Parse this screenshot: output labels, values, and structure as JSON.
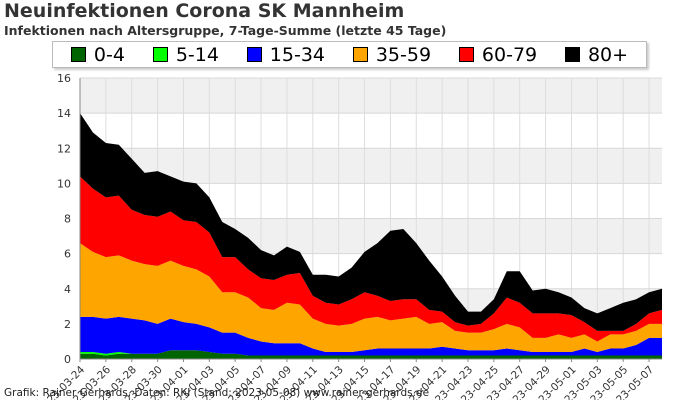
{
  "title": "Neuinfektionen Corona SK Mannheim",
  "subtitle": "Infektionen nach Altersgruppe, 7-Tage-Summe (letzte 45 Tage)",
  "footer": "Grafik: Rainer Gerhards, Daten: RKI (Stand: 2023-05-08) www.rainer-gerhards.de",
  "chart_data": {
    "type": "area",
    "stacked": true,
    "title": "Neuinfektionen Corona SK Mannheim",
    "subtitle": "Infektionen nach Altersgruppe, 7-Tage-Summe (letzte 45 Tage)",
    "xlabel": "",
    "ylabel": "",
    "ylim": [
      0,
      16
    ],
    "yticks": [
      0,
      2,
      4,
      6,
      8,
      10,
      12,
      14,
      16
    ],
    "grid": true,
    "legend_position": "top",
    "x": [
      "2023-03-24",
      "2023-03-25",
      "2023-03-26",
      "2023-03-27",
      "2023-03-28",
      "2023-03-29",
      "2023-03-30",
      "2023-03-31",
      "2023-04-01",
      "2023-04-02",
      "2023-04-03",
      "2023-04-04",
      "2023-04-05",
      "2023-04-06",
      "2023-04-07",
      "2023-04-08",
      "2023-04-09",
      "2023-04-10",
      "2023-04-11",
      "2023-04-12",
      "2023-04-13",
      "2023-04-14",
      "2023-04-15",
      "2023-04-16",
      "2023-04-17",
      "2023-04-18",
      "2023-04-19",
      "2023-04-20",
      "2023-04-21",
      "2023-04-22",
      "2023-04-23",
      "2023-04-24",
      "2023-04-25",
      "2023-04-26",
      "2023-04-27",
      "2023-04-28",
      "2023-04-29",
      "2023-04-30",
      "2023-05-01",
      "2023-05-02",
      "2023-05-03",
      "2023-05-04",
      "2023-05-05",
      "2023-05-06",
      "2023-05-07",
      "2023-05-08"
    ],
    "xtick_labels": [
      "2023-03-24",
      "2023-03-26",
      "2023-03-28",
      "2023-03-30",
      "2023-04-01",
      "2023-04-03",
      "2023-04-05",
      "2023-04-07",
      "2023-04-09",
      "2023-04-11",
      "2023-04-13",
      "2023-04-15",
      "2023-04-17",
      "2023-04-19",
      "2023-04-21",
      "2023-04-23",
      "2023-04-25",
      "2023-04-27",
      "2023-04-29",
      "2023-05-01",
      "2023-05-03",
      "2023-05-05",
      "2023-05-07"
    ],
    "series": [
      {
        "name": "0-4",
        "color": "#006400",
        "values": [
          0.3,
          0.3,
          0.2,
          0.3,
          0.3,
          0.3,
          0.3,
          0.5,
          0.5,
          0.5,
          0.4,
          0.3,
          0.3,
          0.2,
          0.2,
          0.2,
          0.2,
          0.2,
          0.2,
          0.2,
          0.2,
          0.2,
          0.2,
          0.2,
          0.2,
          0.2,
          0.2,
          0.2,
          0.2,
          0.2,
          0.2,
          0.2,
          0.2,
          0.2,
          0.2,
          0.2,
          0.2,
          0.2,
          0.2,
          0.2,
          0.2,
          0.2,
          0.2,
          0.2,
          0.2,
          0.2
        ]
      },
      {
        "name": "5-14",
        "color": "#00ff00",
        "values": [
          0.1,
          0.1,
          0.1,
          0.1,
          0.0,
          0.0,
          0.0,
          0.0,
          0.0,
          0.0,
          0.0,
          0.0,
          0.0,
          0.0,
          0.0,
          0.0,
          0.0,
          0.0,
          0.0,
          0.0,
          0.0,
          0.0,
          0.0,
          0.0,
          0.0,
          0.0,
          0.0,
          0.0,
          0.0,
          0.0,
          0.0,
          0.0,
          0.0,
          0.0,
          0.0,
          0.0,
          0.0,
          0.0,
          0.0,
          0.0,
          0.0,
          0.0,
          0.0,
          0.0,
          0.0,
          0.0
        ]
      },
      {
        "name": "15-34",
        "color": "#0000ff",
        "values": [
          2.0,
          2.0,
          2.0,
          2.0,
          2.0,
          1.9,
          1.7,
          1.8,
          1.6,
          1.5,
          1.4,
          1.2,
          1.2,
          1.0,
          0.8,
          0.7,
          0.7,
          0.7,
          0.4,
          0.2,
          0.2,
          0.2,
          0.3,
          0.4,
          0.4,
          0.4,
          0.4,
          0.4,
          0.5,
          0.4,
          0.3,
          0.3,
          0.3,
          0.4,
          0.3,
          0.2,
          0.2,
          0.2,
          0.2,
          0.4,
          0.2,
          0.4,
          0.4,
          0.6,
          1.0,
          1.0
        ]
      },
      {
        "name": "35-59",
        "color": "#ffa500",
        "values": [
          4.2,
          3.7,
          3.5,
          3.5,
          3.3,
          3.2,
          3.3,
          3.3,
          3.2,
          3.1,
          2.9,
          2.3,
          2.3,
          2.3,
          1.9,
          1.9,
          2.3,
          2.2,
          1.7,
          1.6,
          1.5,
          1.6,
          1.8,
          1.8,
          1.6,
          1.7,
          1.8,
          1.4,
          1.4,
          1.0,
          1.0,
          1.0,
          1.2,
          1.4,
          1.3,
          0.8,
          0.8,
          1.0,
          0.8,
          0.8,
          0.6,
          0.8,
          0.8,
          0.8,
          0.8,
          0.8
        ]
      },
      {
        "name": "60-79",
        "color": "#ff0000",
        "values": [
          3.8,
          3.6,
          3.4,
          3.4,
          2.9,
          2.8,
          2.8,
          2.8,
          2.6,
          2.7,
          2.5,
          2.0,
          2.0,
          1.6,
          1.7,
          1.7,
          1.6,
          1.8,
          1.3,
          1.2,
          1.2,
          1.4,
          1.5,
          1.2,
          1.1,
          1.1,
          1.0,
          0.8,
          0.6,
          0.5,
          0.4,
          0.5,
          0.9,
          1.5,
          1.4,
          1.4,
          1.4,
          1.2,
          1.3,
          0.7,
          0.6,
          0.2,
          0.2,
          0.4,
          0.6,
          0.8
        ]
      },
      {
        "name": "80+",
        "color": "#000000",
        "values": [
          3.6,
          3.2,
          3.1,
          2.9,
          2.9,
          2.4,
          2.6,
          2.0,
          2.2,
          2.2,
          2.0,
          2.0,
          1.6,
          1.8,
          1.6,
          1.4,
          1.6,
          1.2,
          1.2,
          1.6,
          1.6,
          1.8,
          2.3,
          3.0,
          4.0,
          4.0,
          3.2,
          2.8,
          2.0,
          1.5,
          0.8,
          0.7,
          0.8,
          1.5,
          1.8,
          1.3,
          1.4,
          1.2,
          1.0,
          0.8,
          1.0,
          1.3,
          1.6,
          1.4,
          1.2,
          1.2
        ]
      }
    ]
  }
}
